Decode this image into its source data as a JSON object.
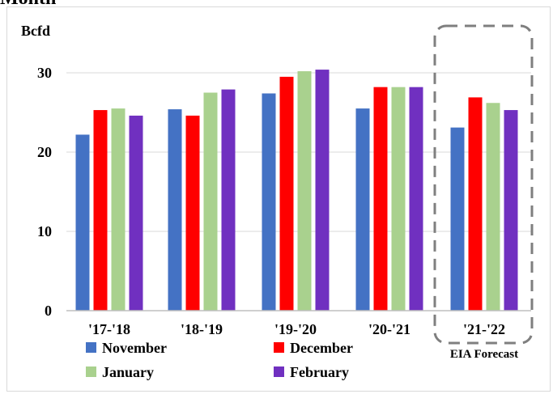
{
  "page": {
    "title_fragment": "Month"
  },
  "chart_data": {
    "type": "bar",
    "ylabel": "Bcfd",
    "xlabel": "",
    "ylim": [
      0,
      33
    ],
    "yticks": [
      0,
      10,
      20,
      30
    ],
    "grid": true,
    "categories": [
      "'17-'18",
      "'18-'19",
      "'19-'20",
      "'20-'21",
      "'21-'22"
    ],
    "series": [
      {
        "name": "November",
        "color": "#4472c4",
        "values": [
          22.2,
          25.4,
          27.4,
          25.5,
          23.1
        ]
      },
      {
        "name": "December",
        "color": "#ff0000",
        "values": [
          25.3,
          24.6,
          29.5,
          28.2,
          26.9
        ]
      },
      {
        "name": "January",
        "color": "#a9d18e",
        "values": [
          25.5,
          27.5,
          30.2,
          28.2,
          26.2
        ]
      },
      {
        "name": "February",
        "color": "#7030c0",
        "values": [
          24.6,
          27.9,
          30.4,
          28.2,
          25.3
        ]
      }
    ],
    "annotation": {
      "label": "EIA Forecast",
      "category": "'21-'22"
    },
    "legend_position": "bottom"
  }
}
